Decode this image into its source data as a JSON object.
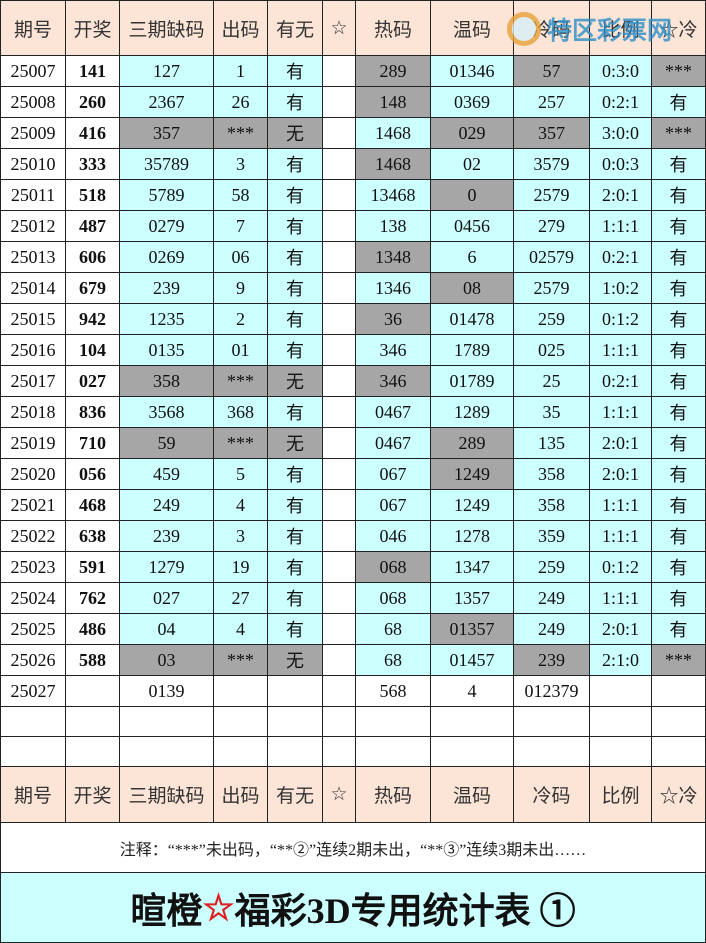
{
  "header": [
    "期号",
    "开奖",
    "三期缺码",
    "出码",
    "有无",
    "☆",
    "热码",
    "温码",
    "冷码",
    "比例",
    "☆冷"
  ],
  "watermark": "特区彩票网",
  "rows": [
    [
      "25007",
      "141",
      "127",
      "1",
      "有",
      null,
      "289",
      "01346",
      "57",
      "0:3:0",
      "***"
    ],
    [
      "25008",
      "260",
      "2367",
      "26",
      "有",
      null,
      "148",
      "0369",
      "257",
      "0:2:1",
      "有"
    ],
    [
      "25009",
      "416",
      "357",
      "***",
      "无",
      null,
      "1468",
      "029",
      "357",
      "3:0:0",
      "***"
    ],
    [
      "25010",
      "333",
      "35789",
      "3",
      "有",
      null,
      "1468",
      "02",
      "3579",
      "0:0:3",
      "有"
    ],
    [
      "25011",
      "518",
      "5789",
      "58",
      "有",
      null,
      "13468",
      "0",
      "2579",
      "2:0:1",
      "有"
    ],
    [
      "25012",
      "487",
      "0279",
      "7",
      "有",
      null,
      "138",
      "0456",
      "279",
      "1:1:1",
      "有"
    ],
    [
      "25013",
      "606",
      "0269",
      "06",
      "有",
      null,
      "1348",
      "6",
      "02579",
      "0:2:1",
      "有"
    ],
    [
      "25014",
      "679",
      "239",
      "9",
      "有",
      null,
      "1346",
      "08",
      "2579",
      "1:0:2",
      "有"
    ],
    [
      "25015",
      "942",
      "1235",
      "2",
      "有",
      null,
      "36",
      "01478",
      "259",
      "0:1:2",
      "有"
    ],
    [
      "25016",
      "104",
      "0135",
      "01",
      "有",
      null,
      "346",
      "1789",
      "025",
      "1:1:1",
      "有"
    ],
    [
      "25017",
      "027",
      "358",
      "***",
      "无",
      null,
      "346",
      "01789",
      "25",
      "0:2:1",
      "有"
    ],
    [
      "25018",
      "836",
      "3568",
      "368",
      "有",
      null,
      "0467",
      "1289",
      "35",
      "1:1:1",
      "有"
    ],
    [
      "25019",
      "710",
      "59",
      "***",
      "无",
      null,
      "0467",
      "289",
      "135",
      "2:0:1",
      "有"
    ],
    [
      "25020",
      "056",
      "459",
      "5",
      "有",
      null,
      "067",
      "1249",
      "358",
      "2:0:1",
      "有"
    ],
    [
      "25021",
      "468",
      "249",
      "4",
      "有",
      null,
      "067",
      "1249",
      "358",
      "1:1:1",
      "有"
    ],
    [
      "25022",
      "638",
      "239",
      "3",
      "有",
      null,
      "046",
      "1278",
      "359",
      "1:1:1",
      "有"
    ],
    [
      "25023",
      "591",
      "1279",
      "19",
      "有",
      null,
      "068",
      "1347",
      "259",
      "0:1:2",
      "有"
    ],
    [
      "25024",
      "762",
      "027",
      "27",
      "有",
      null,
      "068",
      "1357",
      "249",
      "1:1:1",
      "有"
    ],
    [
      "25025",
      "486",
      "04",
      "4",
      "有",
      null,
      "68",
      "01357",
      "249",
      "2:0:1",
      "有"
    ],
    [
      "25026",
      "588",
      "03",
      "***",
      "无",
      null,
      "68",
      "01457",
      "239",
      "2:1:0",
      "***"
    ],
    [
      "25027",
      null,
      "0139",
      null,
      null,
      null,
      "568",
      "4",
      "012379",
      null,
      null
    ]
  ],
  "footer_header": [
    "期号",
    "开奖",
    "三期缺码",
    "出码",
    "有无",
    "☆",
    "热码",
    "温码",
    "冷码",
    "比例",
    "☆冷"
  ],
  "note": "注释：“***”未出码，“**②”连续2期未出，“**③”连续3期未出……",
  "title": {
    "prefix": "暄橙",
    "star": "☆",
    "suffix": "福彩3D专用统计表 ①"
  }
}
